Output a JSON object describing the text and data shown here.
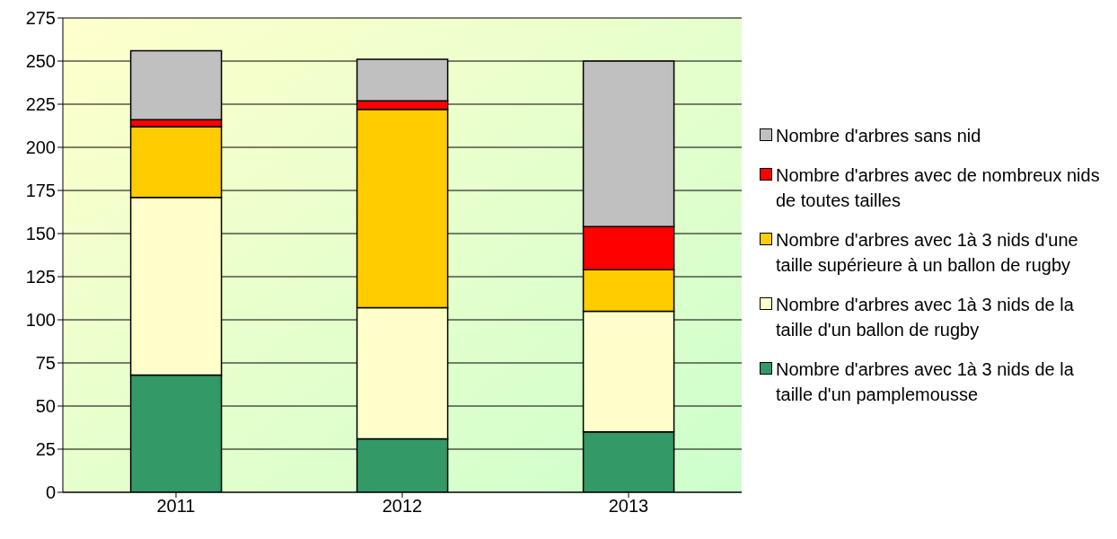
{
  "chart_data": {
    "type": "bar",
    "stacked": true,
    "categories": [
      "2011",
      "2012",
      "2013"
    ],
    "series": [
      {
        "name": "Nombre d'arbres avec 1à 3 nids de la taille d'un pamplemousse",
        "color": "#339966",
        "values": [
          68,
          31,
          35
        ]
      },
      {
        "name": "Nombre d'arbres avec 1à 3 nids de la taille d'un ballon de rugby",
        "color": "#ffffcc",
        "values": [
          103,
          76,
          70
        ]
      },
      {
        "name": "Nombre d'arbres avec 1à 3 nids d'une taille supérieure à un ballon de rugby",
        "color": "#ffcc00",
        "values": [
          41,
          115,
          24
        ]
      },
      {
        "name": "Nombre d'arbres avec de nombreux nids de toutes tailles",
        "color": "#ff0000",
        "values": [
          4,
          5,
          25
        ]
      },
      {
        "name": "Nombre d'arbres sans nid",
        "color": "#c0c0c0",
        "values": [
          40,
          24,
          96
        ]
      }
    ],
    "ylim": [
      0,
      275
    ],
    "yticks": [
      0,
      25,
      50,
      75,
      100,
      125,
      150,
      175,
      200,
      225,
      250,
      275
    ],
    "grid": "y",
    "legend": "right"
  }
}
